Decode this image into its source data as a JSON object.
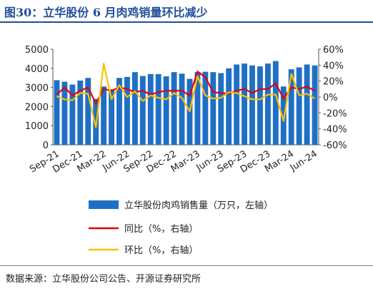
{
  "title": "图30：立华股份 6 月肉鸡销量环比减少",
  "source": "数据来源：立华股份公司公告、开源证券研究所",
  "chart_data": {
    "type": "bar",
    "x": [
      "Sep-21",
      "Oct-21",
      "Nov-21",
      "Dec-21",
      "Jan-22",
      "Feb-22",
      "Mar-22",
      "Apr-22",
      "May-22",
      "Jun-22",
      "Jul-22",
      "Aug-22",
      "Sep-22",
      "Oct-22",
      "Nov-22",
      "Dec-22",
      "Jan-23",
      "Feb-23",
      "Mar-23",
      "Apr-23",
      "May-23",
      "Jun-23",
      "Jul-23",
      "Aug-23",
      "Sep-23",
      "Oct-23",
      "Nov-23",
      "Dec-23",
      "Jan-24",
      "Feb-24",
      "Mar-24",
      "Apr-24",
      "May-24",
      "Jun-24"
    ],
    "x_tick_labels": [
      "Sep-21",
      "Dec-21",
      "Mar-22",
      "Jun-22",
      "Sep-22",
      "Dec-22",
      "Mar-23",
      "Jun-23",
      "Sep-23",
      "Dec-23",
      "Mar-24",
      "Jun-24"
    ],
    "y_left": {
      "ticks": [
        "0",
        "1000",
        "2000",
        "3000",
        "4000",
        "5000"
      ],
      "range": [
        0,
        5000
      ]
    },
    "y_right": {
      "ticks": [
        "-60%",
        "-40%",
        "-20%",
        "0%",
        "20%",
        "40%",
        "60%"
      ],
      "range": [
        -60,
        60
      ]
    },
    "series": [
      {
        "name": "立华股份肉鸡销售量（万只，左轴）",
        "type": "bar",
        "axis": "left",
        "color": "#1f6fc5",
        "values": [
          3380,
          3300,
          3150,
          3360,
          3500,
          2400,
          3050,
          2900,
          3500,
          3550,
          3800,
          3600,
          3700,
          3700,
          3580,
          3800,
          3720,
          3450,
          3800,
          3820,
          3800,
          3750,
          4000,
          4200,
          4250,
          4150,
          4100,
          4250,
          4380,
          3050,
          3950,
          4050,
          4200,
          4150
        ]
      },
      {
        "name": "同比（%，右轴）",
        "type": "line",
        "axis": "right",
        "color": "#e3000f",
        "values": [
          3,
          12,
          2,
          8,
          12,
          -8,
          10,
          8,
          12,
          10,
          6,
          8,
          3,
          6,
          8,
          8,
          8,
          2,
          32,
          25,
          6,
          5,
          4,
          8,
          10,
          5,
          10,
          10,
          17,
          -2,
          12,
          10,
          13,
          8
        ]
      },
      {
        "name": "环比（%，右轴）",
        "type": "line",
        "axis": "right",
        "color": "#ffc000",
        "values": [
          1,
          -3,
          -4,
          5,
          4,
          -38,
          42,
          -3,
          15,
          0,
          7,
          -5,
          2,
          -1,
          -3,
          5,
          -1,
          -18,
          26,
          2,
          -2,
          -1,
          6,
          5,
          1,
          -3,
          -3,
          3,
          3,
          -30,
          29,
          2,
          4,
          -2
        ]
      }
    ]
  }
}
